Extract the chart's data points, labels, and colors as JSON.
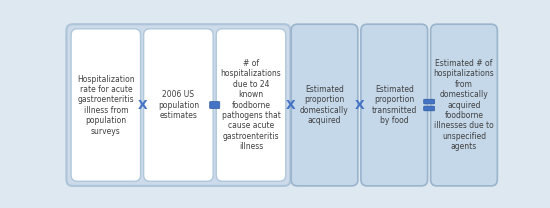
{
  "background_color": "#dde8f0",
  "outer_box_fc": "#ccdaea",
  "outer_box_ec": "#aec4d8",
  "inner_white_fc": "#ffffff",
  "inner_white_ec": "#b0c8dc",
  "inner_blue_fc": "#c5d8ea",
  "inner_blue_ec": "#9ab4cc",
  "operator_color": "#4472c4",
  "text_color": "#404040",
  "font_size": 5.5,
  "operator_font_size": 9.0,
  "boxes": [
    {
      "label": "Hospitalization\nrate for acute\ngastroenteritis\nillness from\npopulation\nsurveys",
      "white": true
    },
    {
      "label": "2006 US\npopulation\nestimates",
      "white": true
    },
    {
      "label": "# of\nhospitalizations\ndue to 24\nknown\nfoodborne\npathogens that\ncause acute\ngastroenteritis\nillness",
      "white": true
    },
    {
      "label": "Estimated\nproportion\ndomestically\nacquired",
      "white": false
    },
    {
      "label": "Estimated\nproportion\ntransmitted\nby food",
      "white": false
    },
    {
      "label": "Estimated # of\nhospitalizations\nfrom\ndomestically\nacquired\nfoodborne\nillnesses due to\nunspecified\nagents",
      "white": false
    }
  ]
}
